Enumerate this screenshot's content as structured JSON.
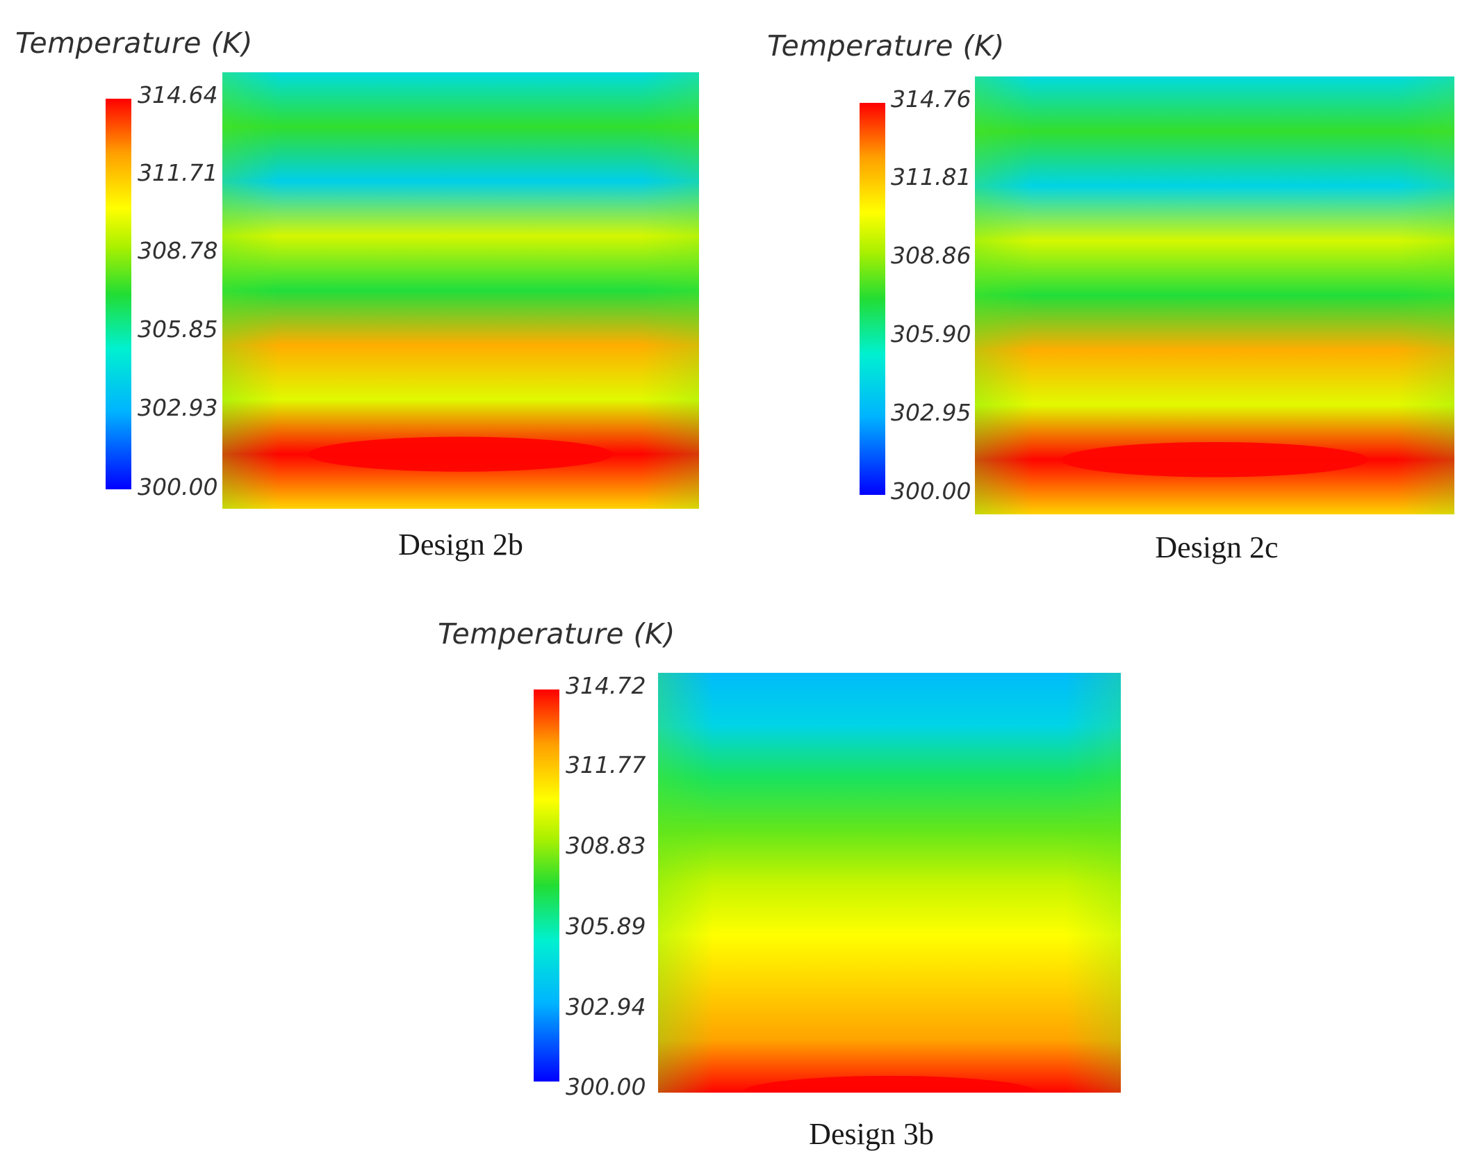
{
  "chart_data": [
    {
      "type": "heatmap",
      "title": "Temperature (K)",
      "caption": "Design 2b",
      "colorbar_ticks": [
        "314.64",
        "311.71",
        "308.78",
        "305.85",
        "302.93",
        "300.00"
      ],
      "range": [
        300.0,
        314.64
      ],
      "bands_top_to_bottom_K": [
        304.5,
        307.5,
        304.0,
        309.8,
        307.2,
        312.3,
        310.0,
        314.6,
        311.5
      ]
    },
    {
      "type": "heatmap",
      "title": "Temperature (K)",
      "caption": "Design 2c",
      "colorbar_ticks": [
        "314.76",
        "311.81",
        "308.86",
        "305.90",
        "302.95",
        "300.00"
      ],
      "range": [
        300.0,
        314.76
      ],
      "bands_top_to_bottom_K": [
        304.5,
        307.6,
        304.2,
        309.9,
        307.3,
        312.4,
        310.1,
        314.7,
        311.6
      ]
    },
    {
      "type": "heatmap",
      "title": "Temperature (K)",
      "caption": "Design 3b",
      "colorbar_ticks": [
        "314.72",
        "311.77",
        "308.83",
        "305.89",
        "302.94",
        "300.00"
      ],
      "range": [
        300.0,
        314.72
      ],
      "bands_top_to_bottom_K": [
        303.2,
        304.2,
        306.8,
        308.2,
        309.6,
        310.6,
        311.6,
        312.6,
        314.7
      ]
    }
  ]
}
